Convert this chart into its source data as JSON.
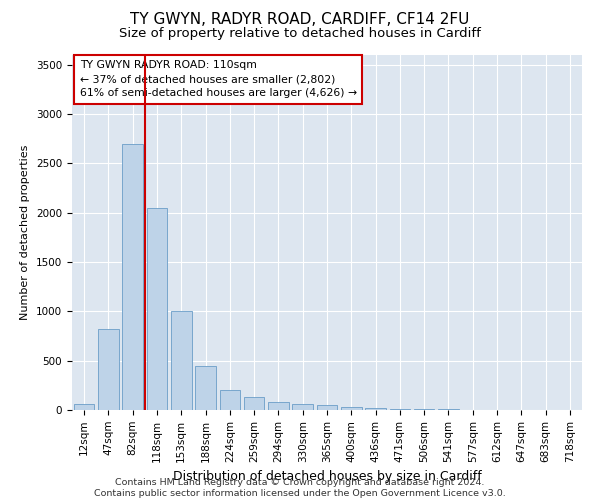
{
  "title1": "TY GWYN, RADYR ROAD, CARDIFF, CF14 2FU",
  "title2": "Size of property relative to detached houses in Cardiff",
  "xlabel": "Distribution of detached houses by size in Cardiff",
  "ylabel": "Number of detached properties",
  "categories": [
    "12sqm",
    "47sqm",
    "82sqm",
    "118sqm",
    "153sqm",
    "188sqm",
    "224sqm",
    "259sqm",
    "294sqm",
    "330sqm",
    "365sqm",
    "400sqm",
    "436sqm",
    "471sqm",
    "506sqm",
    "541sqm",
    "577sqm",
    "612sqm",
    "647sqm",
    "683sqm",
    "718sqm"
  ],
  "values": [
    60,
    820,
    2700,
    2050,
    1000,
    450,
    200,
    130,
    80,
    65,
    50,
    30,
    20,
    15,
    10,
    8,
    5,
    3,
    2,
    1,
    0
  ],
  "bar_color": "#bed3e8",
  "bar_edge_color": "#6a9dc8",
  "vline_x_index": 2,
  "vline_color": "#cc0000",
  "annotation_text": "TY GWYN RADYR ROAD: 110sqm\n← 37% of detached houses are smaller (2,802)\n61% of semi-detached houses are larger (4,626) →",
  "annotation_box_color": "white",
  "annotation_box_edge_color": "#cc0000",
  "ylim": [
    0,
    3600
  ],
  "yticks": [
    0,
    500,
    1000,
    1500,
    2000,
    2500,
    3000,
    3500
  ],
  "background_color": "#dde6f0",
  "footer": "Contains HM Land Registry data © Crown copyright and database right 2024.\nContains public sector information licensed under the Open Government Licence v3.0.",
  "title1_fontsize": 11,
  "title2_fontsize": 9.5,
  "xlabel_fontsize": 9,
  "ylabel_fontsize": 8,
  "annotation_fontsize": 7.8,
  "footer_fontsize": 6.8,
  "tick_fontsize": 7.5
}
